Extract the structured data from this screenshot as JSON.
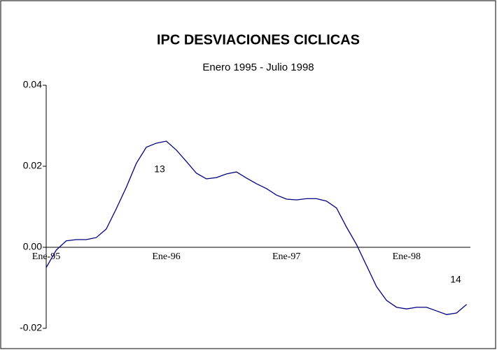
{
  "chart_data": {
    "type": "line",
    "title": "IPC DESVIACIONES CICLICAS",
    "subtitle": "Enero 1995 - Julio 1998",
    "categories": [
      "Ene-95",
      null,
      null,
      null,
      null,
      null,
      null,
      null,
      null,
      null,
      null,
      null,
      "Ene-96",
      null,
      null,
      null,
      null,
      null,
      null,
      null,
      null,
      null,
      null,
      null,
      "Ene-97",
      null,
      null,
      null,
      null,
      null,
      null,
      null,
      null,
      null,
      null,
      null,
      "Ene-98",
      null,
      null,
      null,
      null,
      null,
      null
    ],
    "series": [
      {
        "color": "#000080",
        "values": [
          -0.005,
          -0.0007,
          0.0016,
          0.0019,
          0.0019,
          0.0024,
          0.0045,
          0.0095,
          0.0148,
          0.0207,
          0.0247,
          0.0257,
          0.0262,
          0.024,
          0.0212,
          0.0183,
          0.0169,
          0.0172,
          0.0181,
          0.0186,
          0.0171,
          0.0157,
          0.0145,
          0.0129,
          0.0119,
          0.0117,
          0.012,
          0.012,
          0.0114,
          0.0097,
          0.005,
          0.0007,
          -0.0045,
          -0.0097,
          -0.0131,
          -0.0148,
          -0.0152,
          -0.0148,
          -0.0148,
          -0.0157,
          -0.0166,
          -0.0162,
          -0.0141
        ]
      }
    ],
    "annotations": [
      "13",
      "14"
    ],
    "ylim": [
      -0.02,
      0.04
    ],
    "yticks": [
      0.04,
      0.02,
      {
        "value": 0,
        "label": "0.00"
      },
      -0.02
    ],
    "grid": false
  }
}
